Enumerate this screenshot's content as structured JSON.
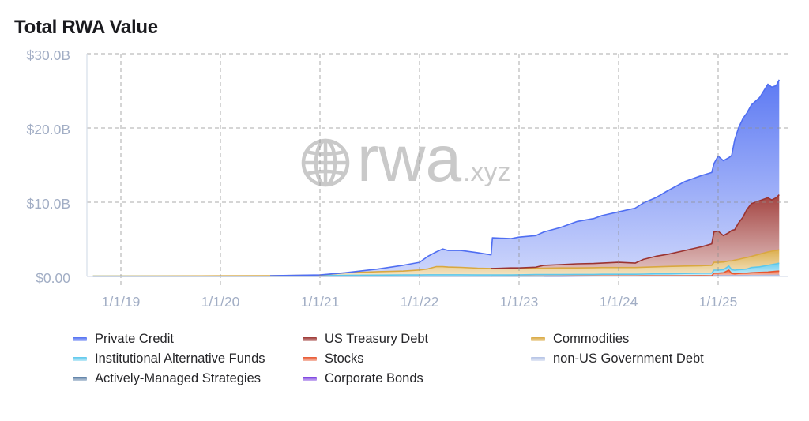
{
  "watermark": {
    "brand": "rwa",
    "suffix": ".xyz",
    "icon": "globe-icon"
  },
  "chart_data": {
    "type": "area",
    "stacked": true,
    "title": "Total RWA Value",
    "xlabel": "",
    "ylabel": "",
    "ylim": [
      0,
      30
    ],
    "y_unit": "USD billions",
    "yticks": [
      "$0.00",
      "$10.0B",
      "$20.0B",
      "$30.0B"
    ],
    "ytick_values": [
      0,
      10,
      20,
      30
    ],
    "xticks": [
      "1/1/19",
      "1/1/20",
      "1/1/21",
      "1/1/22",
      "1/1/23",
      "1/1/24",
      "1/1/25"
    ],
    "xtick_dates": [
      "2019-01-01",
      "2020-01-01",
      "2021-01-01",
      "2022-01-01",
      "2023-01-01",
      "2024-01-01",
      "2025-01-01"
    ],
    "grid": true,
    "legend_position": "bottom",
    "x": [
      "2018-09-20",
      "2019-06-01",
      "2020-01-01",
      "2020-07-01",
      "2021-01-01",
      "2021-04-01",
      "2021-08-01",
      "2021-11-01",
      "2022-01-01",
      "2022-02-01",
      "2022-03-01",
      "2022-03-25",
      "2022-04-15",
      "2022-06-01",
      "2022-08-01",
      "2022-09-20",
      "2022-09-25",
      "2022-12-01",
      "2023-01-01",
      "2023-03-01",
      "2023-04-01",
      "2023-06-01",
      "2023-08-01",
      "2023-10-01",
      "2023-11-01",
      "2024-01-01",
      "2024-03-01",
      "2024-04-01",
      "2024-05-15",
      "2024-07-01",
      "2024-09-01",
      "2024-11-01",
      "2024-12-08",
      "2024-12-16",
      "2025-01-01",
      "2025-01-20",
      "2025-02-10",
      "2025-02-20",
      "2025-03-01",
      "2025-03-15",
      "2025-04-01",
      "2025-04-15",
      "2025-05-01",
      "2025-06-01",
      "2025-07-01",
      "2025-07-15",
      "2025-08-01",
      "2025-08-12"
    ],
    "series": [
      {
        "name": "Private Credit",
        "color": "#4f6ef2",
        "values": [
          0,
          0,
          0,
          0,
          0.02,
          0.02,
          0.35,
          0.78,
          1.03,
          1.68,
          1.98,
          2.38,
          2.23,
          2.28,
          2.08,
          1.83,
          4.13,
          3.95,
          4.15,
          4.25,
          4.5,
          5.0,
          5.7,
          6.05,
          6.4,
          6.8,
          7.4,
          7.6,
          7.9,
          8.6,
          9.3,
          9.6,
          9.6,
          9.2,
          10.1,
          10.1,
          10.1,
          10.1,
          12.1,
          12.8,
          13.3,
          13.0,
          13.3,
          13.9,
          15.3,
          15.2,
          15.1,
          15.5
        ]
      },
      {
        "name": "US Treasury Debt",
        "color": "#9b3330",
        "values": [
          0,
          0,
          0,
          0,
          0,
          0,
          0,
          0,
          0,
          0,
          0,
          0,
          0,
          0,
          0,
          0,
          0.02,
          0.07,
          0.05,
          0.13,
          0.38,
          0.45,
          0.55,
          0.57,
          0.6,
          0.7,
          0.6,
          1.05,
          1.4,
          1.65,
          2.1,
          2.55,
          2.9,
          4.1,
          4.2,
          3.55,
          3.8,
          4.1,
          4.1,
          4.9,
          5.55,
          6.45,
          7.1,
          7.2,
          7.3,
          6.9,
          7.1,
          7.4
        ]
      },
      {
        "name": "Commodities",
        "color": "#d9a840",
        "values": [
          0.01,
          0.01,
          0.02,
          0.03,
          0.08,
          0.33,
          0.47,
          0.52,
          0.67,
          0.8,
          1.1,
          1.1,
          1.05,
          1.0,
          0.92,
          0.87,
          0.85,
          0.88,
          0.88,
          0.87,
          0.87,
          0.9,
          0.87,
          0.9,
          0.9,
          0.9,
          0.9,
          0.93,
          0.95,
          1.0,
          1.0,
          1.0,
          1.05,
          1.05,
          1.05,
          1.05,
          0.7,
          1.2,
          1.35,
          1.4,
          1.5,
          1.55,
          1.5,
          1.7,
          1.8,
          1.8,
          1.8,
          1.8
        ]
      },
      {
        "name": "Institutional Alternative Funds",
        "color": "#5cc8ec",
        "values": [
          0.02,
          0.03,
          0.04,
          0.05,
          0.08,
          0.13,
          0.16,
          0.18,
          0.18,
          0.2,
          0.2,
          0.2,
          0.2,
          0.2,
          0.18,
          0.18,
          0.17,
          0.16,
          0.18,
          0.2,
          0.2,
          0.2,
          0.22,
          0.22,
          0.23,
          0.23,
          0.23,
          0.24,
          0.27,
          0.27,
          0.31,
          0.35,
          0.37,
          0.4,
          0.4,
          0.4,
          0.55,
          0.5,
          0.5,
          0.5,
          0.5,
          0.55,
          0.7,
          0.75,
          0.9,
          0.95,
          1.0,
          1.08
        ]
      },
      {
        "name": "Stocks",
        "color": "#e8562e",
        "values": [
          0,
          0,
          0,
          0,
          0,
          0,
          0,
          0,
          0,
          0,
          0,
          0,
          0,
          0,
          0,
          0,
          0.01,
          0.02,
          0.02,
          0.03,
          0.03,
          0.02,
          0.02,
          0.01,
          0.02,
          0.01,
          0.01,
          0.02,
          0.01,
          0.01,
          0.01,
          0.02,
          0.01,
          0.35,
          0.35,
          0.4,
          0.75,
          0.3,
          0.25,
          0.3,
          0.33,
          0.33,
          0.37,
          0.41,
          0.45,
          0.5,
          0.55,
          0.56
        ]
      },
      {
        "name": "non-US Government Debt",
        "color": "#b4c3e6",
        "values": [
          0.01,
          0.01,
          0.01,
          0.01,
          0.01,
          0.01,
          0.01,
          0.01,
          0.01,
          0.01,
          0.01,
          0.01,
          0.01,
          0.01,
          0.01,
          0.01,
          0.01,
          0.01,
          0.01,
          0.01,
          0.01,
          0.01,
          0.01,
          0.01,
          0.01,
          0.01,
          0.01,
          0.01,
          0.01,
          0.01,
          0.01,
          0.01,
          0.01,
          0.01,
          0.01,
          0.01,
          0.01,
          0.01,
          0.01,
          0.01,
          0.01,
          0.01,
          0.01,
          0.01,
          0.01,
          0.01,
          0.01,
          0.01
        ]
      },
      {
        "name": "Actively-Managed Strategies",
        "color": "#5b7fa6",
        "values": [
          0.01,
          0.01,
          0.01,
          0.01,
          0.01,
          0.01,
          0.01,
          0.01,
          0.01,
          0.01,
          0.01,
          0.01,
          0.01,
          0.01,
          0.01,
          0.01,
          0.01,
          0.01,
          0.01,
          0.01,
          0.01,
          0.01,
          0.01,
          0.01,
          0.01,
          0.01,
          0.01,
          0.01,
          0.01,
          0.01,
          0.01,
          0.01,
          0.01,
          0.01,
          0.01,
          0.01,
          0.01,
          0.01,
          0.01,
          0.01,
          0.01,
          0.01,
          0.01,
          0.01,
          0.01,
          0.01,
          0.01,
          0.01
        ]
      },
      {
        "name": "Corporate Bonds",
        "color": "#7a3fe0",
        "values": [
          0,
          0,
          0,
          0,
          0,
          0,
          0,
          0,
          0,
          0,
          0,
          0,
          0,
          0,
          0,
          0,
          0,
          0,
          0,
          0,
          0,
          0.01,
          0.02,
          0.03,
          0.03,
          0.04,
          0.04,
          0.04,
          0.05,
          0.05,
          0.06,
          0.06,
          0.05,
          0.08,
          0.08,
          0.08,
          0.08,
          0.08,
          0.08,
          0.08,
          0.1,
          0.1,
          0.11,
          0.12,
          0.13,
          0.13,
          0.13,
          0.14
        ]
      }
    ]
  }
}
